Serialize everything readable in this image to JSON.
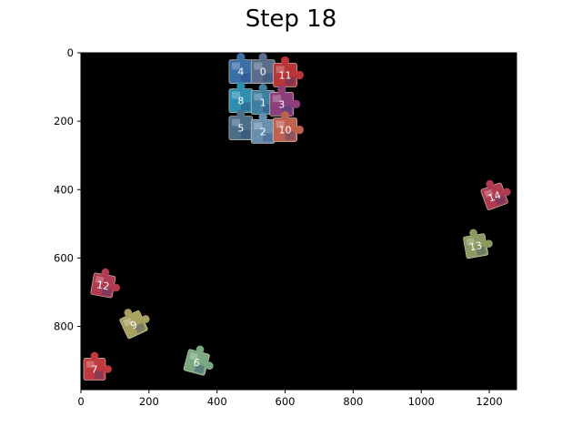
{
  "title": "Step 18",
  "board": {
    "xlim": [
      0,
      1280
    ],
    "ylim": [
      0,
      985
    ],
    "x_ticks": [
      0,
      200,
      400,
      600,
      800,
      1000,
      1200
    ],
    "y_ticks": [
      0,
      200,
      400,
      600,
      800
    ],
    "background": "#000000"
  },
  "assembled_cluster": {
    "pieces": [
      {
        "label": "4",
        "x": 470,
        "y": 55,
        "color": "#3a6fa8"
      },
      {
        "label": "0",
        "x": 535,
        "y": 55,
        "color": "#5a6e8c"
      },
      {
        "label": "11",
        "x": 600,
        "y": 65,
        "color": "#b8353a"
      },
      {
        "label": "8",
        "x": 470,
        "y": 140,
        "color": "#2f8fb0"
      },
      {
        "label": "1",
        "x": 535,
        "y": 145,
        "color": "#3f7fa0"
      },
      {
        "label": "3",
        "x": 590,
        "y": 150,
        "color": "#8c3f7a"
      },
      {
        "label": "5",
        "x": 470,
        "y": 220,
        "color": "#4a6e88"
      },
      {
        "label": "2",
        "x": 535,
        "y": 230,
        "color": "#6a90b0"
      },
      {
        "label": "10",
        "x": 600,
        "y": 225,
        "color": "#c06050"
      }
    ]
  },
  "loose_pieces": [
    {
      "label": "14",
      "x": 1215,
      "y": 420,
      "angle": -20,
      "color": "#b03a50"
    },
    {
      "label": "13",
      "x": 1160,
      "y": 565,
      "angle": -10,
      "color": "#8a9a60"
    },
    {
      "label": "12",
      "x": 65,
      "y": 680,
      "angle": 10,
      "color": "#b03a50"
    },
    {
      "label": "9",
      "x": 155,
      "y": 795,
      "angle": -25,
      "color": "#a8a060"
    },
    {
      "label": "6",
      "x": 340,
      "y": 905,
      "angle": 15,
      "color": "#7aa880"
    },
    {
      "label": "7",
      "x": 40,
      "y": 925,
      "angle": 0,
      "color": "#c03a40"
    }
  ]
}
